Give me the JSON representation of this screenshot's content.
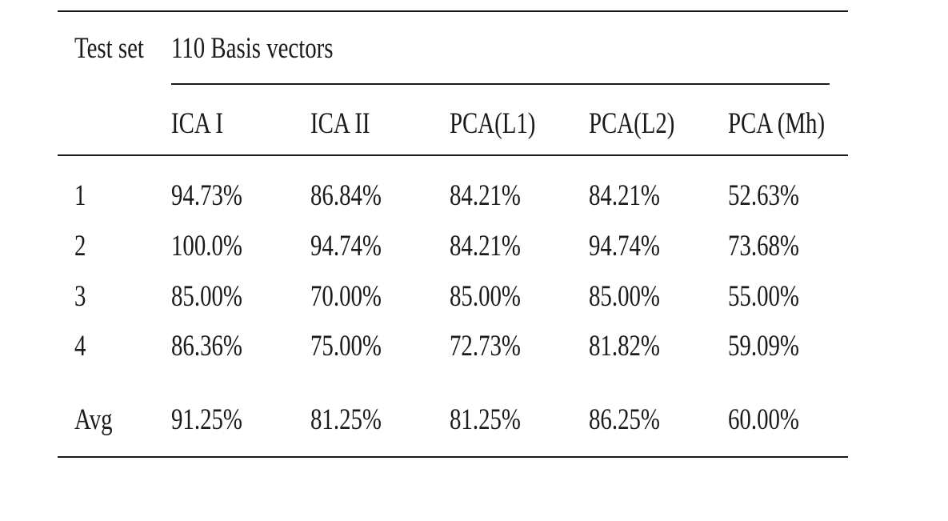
{
  "table": {
    "stub_header": "Test set",
    "group_header": "110 Basis vectors",
    "columns": [
      "ICA I",
      "ICA II",
      "PCA(L1)",
      "PCA(L2)",
      "PCA (Mh)"
    ],
    "rows": [
      {
        "label": "1",
        "values": [
          "94.73%",
          "86.84%",
          "84.21%",
          "84.21%",
          "52.63%"
        ]
      },
      {
        "label": "2",
        "values": [
          "100.0%",
          "94.74%",
          "84.21%",
          "94.74%",
          "73.68%"
        ]
      },
      {
        "label": "3",
        "values": [
          "85.00%",
          "70.00%",
          "85.00%",
          "85.00%",
          "55.00%"
        ]
      },
      {
        "label": "4",
        "values": [
          "86.36%",
          "75.00%",
          "72.73%",
          "81.82%",
          "59.09%"
        ]
      }
    ],
    "average": {
      "label": "Avg",
      "values": [
        "91.25%",
        "81.25%",
        "81.25%",
        "86.25%",
        "60.00%"
      ]
    }
  }
}
